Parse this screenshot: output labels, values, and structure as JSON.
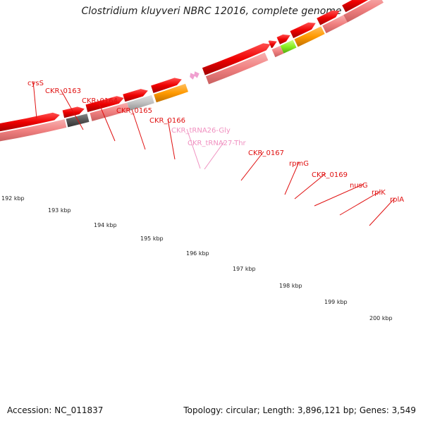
{
  "title": "Clostridium kluyveri NBRC 12016, complete genome",
  "footer": {
    "accession": "Accession: NC_011837",
    "summary": "Topology: circular; Length: 3,896,121 bp; Genes: 3,549"
  },
  "colors": {
    "gene_label": "#e01010",
    "trna_label": "#f090c0",
    "cds_arrow": "#ee0000",
    "gene_bar": "#f08888",
    "backbone": "#808080",
    "tick": "#1a8a1a",
    "orange": "#ff9900",
    "dark_gray": "#555555",
    "light_gray": "#c0c0c0",
    "lime": "#88ee22",
    "trna": "#f0a0d0"
  },
  "gene_labels": [
    {
      "text": "cysS",
      "kind": "gene"
    },
    {
      "text": "CKR_0163",
      "kind": "gene"
    },
    {
      "text": "CKR_0164",
      "kind": "gene"
    },
    {
      "text": "CKR_0165",
      "kind": "gene"
    },
    {
      "text": "CKR_0166",
      "kind": "gene"
    },
    {
      "text": "CKR_tRNA26-Gly",
      "kind": "trna"
    },
    {
      "text": "CKR_tRNA27-Thr",
      "kind": "trna"
    },
    {
      "text": "CKR_0167",
      "kind": "gene"
    },
    {
      "text": "rpmG",
      "kind": "gene"
    },
    {
      "text": "CKR_0169",
      "kind": "gene"
    },
    {
      "text": "nusG",
      "kind": "gene"
    },
    {
      "text": "rplK",
      "kind": "gene"
    },
    {
      "text": "rplA",
      "kind": "gene"
    }
  ],
  "kbp_labels": [
    "192 kbp",
    "193 kbp",
    "194 kbp",
    "195 kbp",
    "196 kbp",
    "197 kbp",
    "198 kbp",
    "199 kbp",
    "200 kbp"
  ]
}
